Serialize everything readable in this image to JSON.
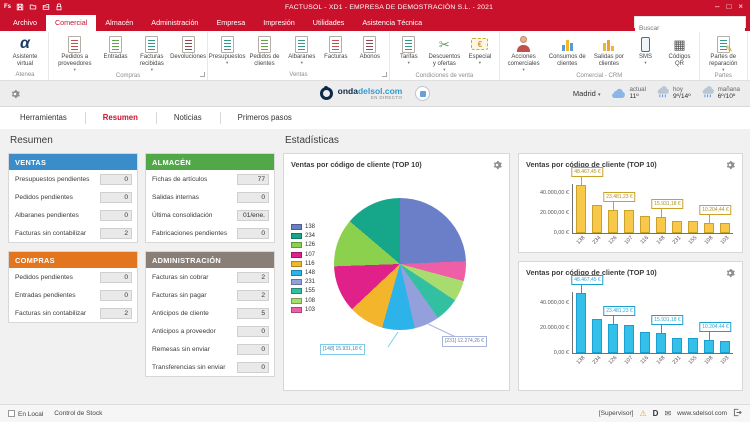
{
  "window": {
    "title": "FACTUSOL - XD1 - EMPRESA DE DEMOSTRACIÓN S.L. - 2021",
    "controls": {
      "minimize": "–",
      "maximize": "□",
      "close": "×"
    }
  },
  "menu": {
    "tabs": [
      "Archivo",
      "Comercial",
      "Almacén",
      "Administración",
      "Empresa",
      "Impresión",
      "Utilidades",
      "Asistencia Técnica"
    ],
    "active_tab": "Comercial",
    "search_placeholder": "Buscar"
  },
  "ribbon": {
    "groups": [
      {
        "label": "Atenea",
        "launcher": false,
        "items": [
          {
            "label": "Asistente virtual",
            "icon": "alpha-icon",
            "arrow": false
          }
        ]
      },
      {
        "label": "Compras",
        "launcher": true,
        "items": [
          {
            "label": "Pedidos a proveedores",
            "icon": "doc-red-icon",
            "arrow": true
          },
          {
            "label": "Entradas",
            "icon": "doc-green-icon",
            "arrow": false
          },
          {
            "label": "Facturas recibidas",
            "icon": "doc-teal-icon",
            "arrow": true
          },
          {
            "label": "Devoluciones",
            "icon": "doc-dark-icon",
            "arrow": false
          }
        ]
      },
      {
        "label": "Ventas",
        "launcher": true,
        "items": [
          {
            "label": "Presupuestos",
            "icon": "doc-teal-icon",
            "arrow": true
          },
          {
            "label": "Pedidos de clientes",
            "icon": "doc-green-icon",
            "arrow": false
          },
          {
            "label": "Albaranes",
            "icon": "doc-teal-icon",
            "arrow": true
          },
          {
            "label": "Facturas",
            "icon": "doc-red-icon",
            "arrow": false
          },
          {
            "label": "Abonos",
            "icon": "doc-dark-icon",
            "arrow": false
          }
        ]
      },
      {
        "label": "Condiciones de venta",
        "launcher": false,
        "items": [
          {
            "label": "Tarifas",
            "icon": "doc-teal-icon",
            "arrow": true
          },
          {
            "label": "Descuentos y ofertas",
            "icon": "scissors-icon",
            "arrow": true
          },
          {
            "label": "Especial",
            "icon": "euro-ticket-icon",
            "arrow": true
          }
        ]
      },
      {
        "label": "Comercial - CRM",
        "launcher": false,
        "items": [
          {
            "label": "Acciones comerciales",
            "icon": "person-icon",
            "arrow": true
          },
          {
            "label": "Consumos de clientes",
            "icon": "bars-blue-icon",
            "arrow": false
          },
          {
            "label": "Salidas por clientes",
            "icon": "bars-yellow-icon",
            "arrow": false
          },
          {
            "label": "SMS",
            "icon": "phone-icon",
            "arrow": true
          },
          {
            "label": "Códigos QR",
            "icon": "qr-icon",
            "arrow": false
          }
        ]
      },
      {
        "label": "Partes",
        "launcher": false,
        "items": [
          {
            "label": "Partes de reparación",
            "icon": "doc-pencil-icon",
            "arrow": true
          }
        ]
      }
    ]
  },
  "infobar": {
    "brand": {
      "name_bold": "onda",
      "name_rest": "delsol.com",
      "tagline": "EN DIRECTO"
    },
    "city": "Madrid",
    "weather": [
      {
        "label": "actual",
        "temp": "11º",
        "icon": "cloud-icon"
      },
      {
        "label": "hoy",
        "temp": "9º/14º",
        "icon": "rain-icon"
      },
      {
        "label": "mañana",
        "temp": "6º/10º",
        "icon": "rain-icon"
      }
    ]
  },
  "subtabs": {
    "items": [
      "Herramientas",
      "Resumen",
      "Noticias",
      "Primeros pasos"
    ],
    "active": "Resumen"
  },
  "resumen": {
    "heading": "Resumen",
    "panels": [
      {
        "title": "VENTAS",
        "color": "#3a8dc8",
        "rows": [
          {
            "label": "Presupuestos pendientes",
            "value": "0"
          },
          {
            "label": "Pedidos pendientes",
            "value": "0"
          },
          {
            "label": "Albaranes pendientes",
            "value": "0"
          },
          {
            "label": "Facturas sin contabilizar",
            "value": "2"
          }
        ]
      },
      {
        "title": "ALMACÉN",
        "color": "#52a849",
        "rows": [
          {
            "label": "Fichas de artículos",
            "value": "77"
          },
          {
            "label": "Salidas internas",
            "value": "0"
          },
          {
            "label": "Última consolidación",
            "value": "01/ene."
          },
          {
            "label": "Fabricaciones pendientes",
            "value": "0"
          }
        ]
      },
      {
        "title": "COMPRAS",
        "color": "#e2751d",
        "rows": [
          {
            "label": "Pedidos pendientes",
            "value": "0"
          },
          {
            "label": "Entradas pendientes",
            "value": "0"
          },
          {
            "label": "Facturas sin contabilizar",
            "value": "2"
          }
        ]
      },
      {
        "title": "ADMINISTRACIÓN",
        "color": "#8a7f76",
        "rows": [
          {
            "label": "Facturas sin cobrar",
            "value": "2"
          },
          {
            "label": "Facturas sin pagar",
            "value": "2"
          },
          {
            "label": "Anticipos de cliente",
            "value": "5"
          },
          {
            "label": "Anticipos a proveedor",
            "value": "0"
          },
          {
            "label": "Remesas sin enviar",
            "value": "0"
          },
          {
            "label": "Transferencias sin enviar",
            "value": "0"
          }
        ]
      }
    ]
  },
  "stats": {
    "heading": "Estadísticas"
  },
  "chart_data": [
    {
      "type": "pie",
      "title": "Ventas por código de cliente (TOP 10)",
      "legend_position": "left",
      "slices": [
        {
          "label": "138",
          "value": 48467.45,
          "color": "#6b7ec8"
        },
        {
          "label": "234",
          "value": 27500,
          "color": "#16a689"
        },
        {
          "label": "126",
          "value": 23481.23,
          "color": "#8bd14e"
        },
        {
          "label": "107",
          "value": 22800,
          "color": "#e0218a"
        },
        {
          "label": "116",
          "value": 17200,
          "color": "#f2b52b"
        },
        {
          "label": "148",
          "value": 15931.18,
          "color": "#2bb3ea"
        },
        {
          "label": "231",
          "value": 12274.26,
          "color": "#93a0dc"
        },
        {
          "label": "155",
          "value": 11800,
          "color": "#33bfa2"
        },
        {
          "label": "108",
          "value": 10204.44,
          "color": "#a8dc6e"
        },
        {
          "label": "103",
          "value": 9700,
          "color": "#ee5fa7"
        }
      ],
      "callouts": [
        {
          "text": "[148] 15.931,18 €"
        },
        {
          "text": "[231] 12.274,26 €"
        }
      ]
    },
    {
      "type": "bar",
      "title": "Ventas por código de cliente (TOP 10)",
      "bar_color": "#f7c84a",
      "bar_border": "#c9a227",
      "callout_color": "#b08d1e",
      "categories": [
        "138",
        "234",
        "126",
        "107",
        "116",
        "148",
        "231",
        "155",
        "108",
        "103"
      ],
      "values": [
        48467.45,
        27500,
        23481.23,
        22800,
        17200,
        15931.18,
        12274.26,
        11800,
        10204.44,
        9700
      ],
      "ylim": [
        0,
        50000
      ],
      "yticks": [
        {
          "value": 0,
          "label": "0,00 €"
        },
        {
          "value": 20000,
          "label": "20.000,00 €"
        },
        {
          "value": 40000,
          "label": "40.000,00 €"
        }
      ],
      "callouts": [
        {
          "category": "138",
          "text": "48.467,45 €"
        },
        {
          "category": "126",
          "text": "23.481,23 €"
        },
        {
          "category": "148",
          "text": "15.931,18 €"
        },
        {
          "category": "108",
          "text": "10.204,44 €"
        }
      ]
    },
    {
      "type": "bar",
      "title": "Ventas por código de cliente (TOP 10)",
      "bar_color": "#35c0ea",
      "bar_border": "#1a9fd0",
      "callout_color": "#2aa9d2",
      "categories": [
        "138",
        "234",
        "126",
        "107",
        "116",
        "148",
        "231",
        "155",
        "108",
        "103"
      ],
      "values": [
        48467.45,
        27500,
        23481.23,
        22800,
        17200,
        15931.18,
        12274.26,
        11800,
        10204.44,
        9700
      ],
      "ylim": [
        0,
        50000
      ],
      "yticks": [
        {
          "value": 0,
          "label": "0,00 €"
        },
        {
          "value": 20000,
          "label": "20.000,00 €"
        },
        {
          "value": 40000,
          "label": "40.000,00 €"
        }
      ],
      "callouts": [
        {
          "category": "138",
          "text": "48.467,45 €"
        },
        {
          "category": "126",
          "text": "23.481,23 €"
        },
        {
          "category": "148",
          "text": "15.931,18 €"
        },
        {
          "category": "108",
          "text": "10.204,44 €"
        }
      ]
    }
  ],
  "statusbar": {
    "local_label": "En Local",
    "stock_label": "Control de Stock",
    "user": "[Supervisor]",
    "site": "www.sdelsol.com"
  }
}
